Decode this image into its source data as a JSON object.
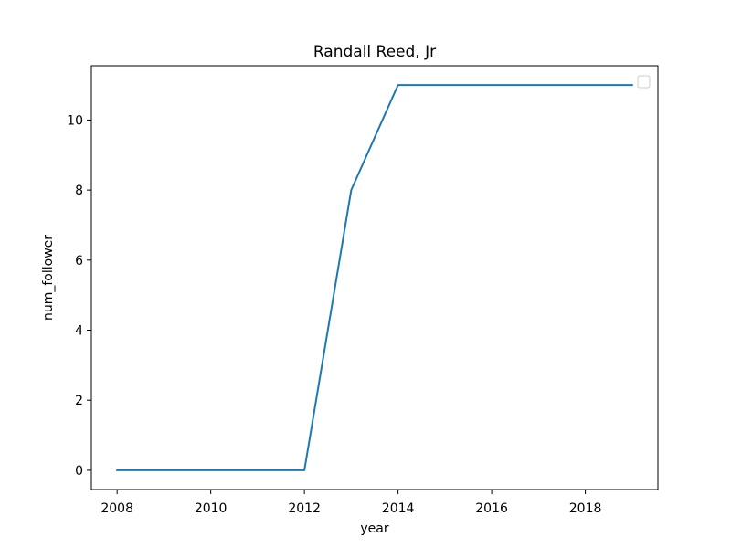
{
  "chart_data": {
    "type": "line",
    "title": "Randall Reed, Jr",
    "xlabel": "year",
    "ylabel": "num_follower",
    "xlim": [
      2007.45,
      2019.55
    ],
    "ylim": [
      -0.55,
      11.55
    ],
    "xticks": [
      2008,
      2010,
      2012,
      2014,
      2016,
      2018
    ],
    "yticks": [
      0,
      2,
      4,
      6,
      8,
      10
    ],
    "xtick_labels": [
      "2008",
      "2010",
      "2012",
      "2014",
      "2016",
      "2018"
    ],
    "ytick_labels": [
      "0",
      "2",
      "4",
      "6",
      "8",
      "10"
    ],
    "grid": false,
    "legend": "upper-right",
    "series": [
      {
        "color": "#1f77b4",
        "x": [
          2008,
          2009,
          2010,
          2011,
          2012,
          2013,
          2014,
          2015,
          2016,
          2017,
          2018,
          2019
        ],
        "y": [
          0,
          0,
          0,
          0,
          0,
          8,
          11,
          11,
          11,
          11,
          11,
          11
        ]
      }
    ]
  }
}
